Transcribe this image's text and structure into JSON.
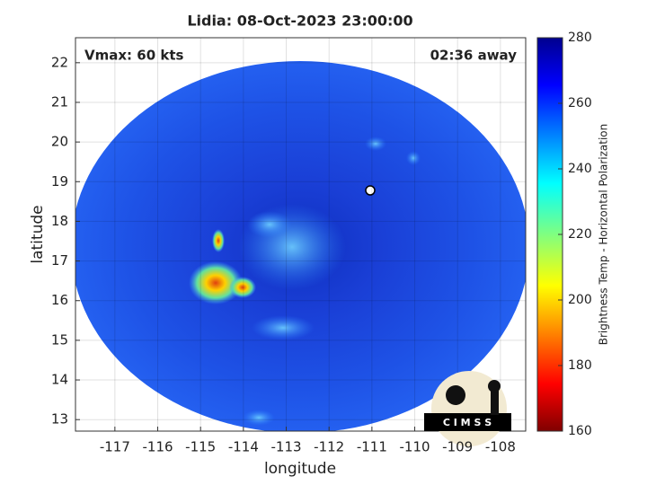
{
  "chart_data": {
    "type": "heatmap",
    "title": "Lidia: 08-Oct-2023 23:00:00",
    "annotations": [
      "Vmax: 60 kts",
      "02:36 away"
    ],
    "xlabel": "longitude",
    "ylabel": "latitude",
    "xlim": [
      -117.92,
      -107.41
    ],
    "ylim": [
      12.71,
      22.63
    ],
    "xticks": [
      -117,
      -116,
      -115,
      -114,
      -113,
      -112,
      -111,
      -110,
      -109,
      -108
    ],
    "yticks": [
      13,
      14,
      15,
      16,
      17,
      18,
      19,
      20,
      21,
      22
    ],
    "grid": true,
    "colorbar": {
      "label": "Brightness Temp - Horizontal Polarization",
      "clim": [
        160,
        280
      ],
      "ticks": [
        160,
        180,
        200,
        220,
        240,
        260,
        280
      ],
      "colormap": "jet"
    },
    "logo": "C I M S S"
  }
}
